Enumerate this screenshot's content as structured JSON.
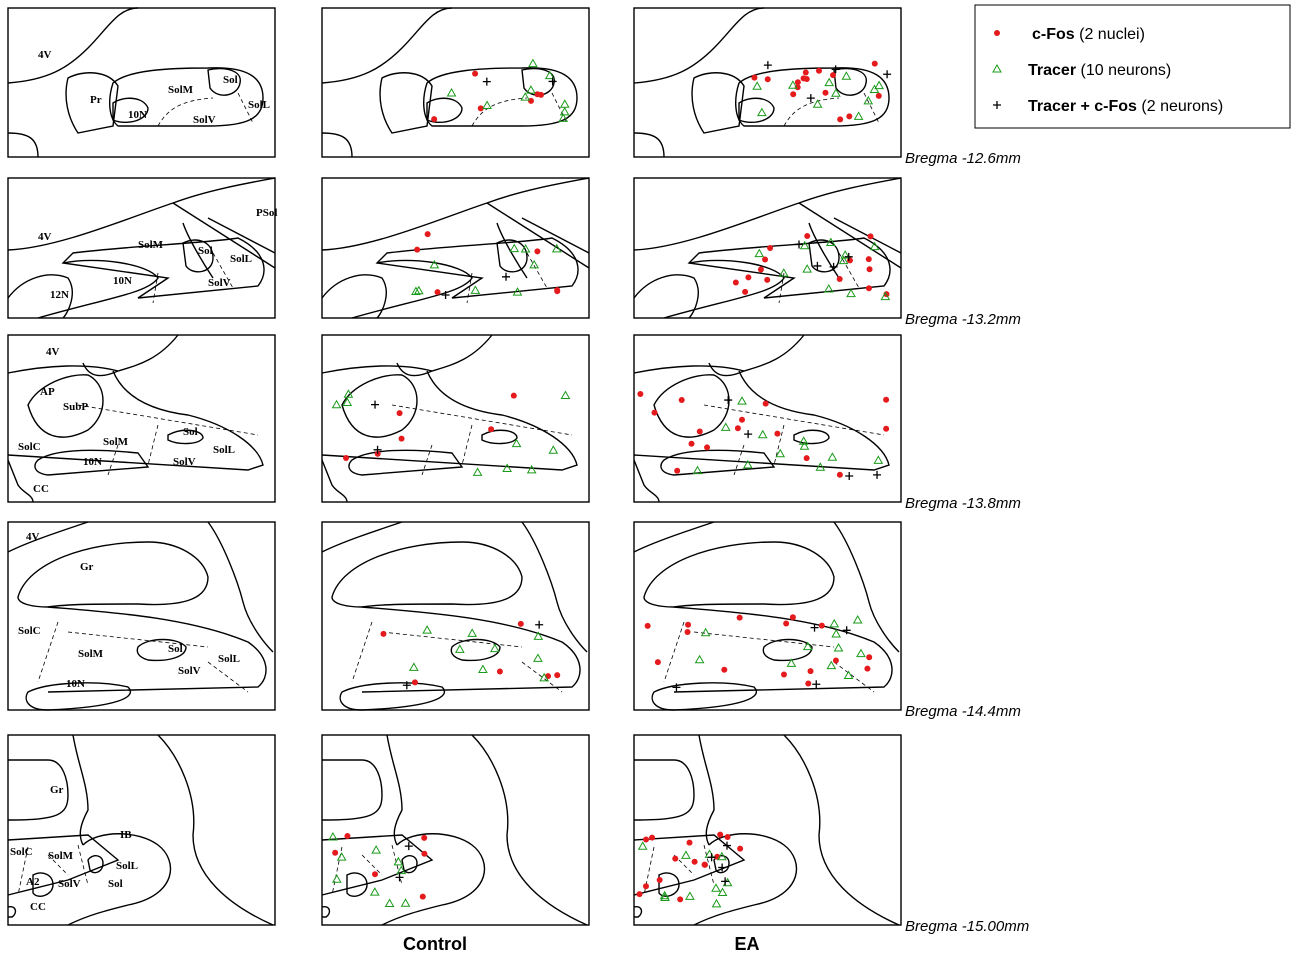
{
  "legend": [
    {
      "name": "c-Fos",
      "note": "(2 nuclei)"
    },
    {
      "name": "Tracer",
      "note": "(10 neurons)"
    },
    {
      "name": "Tracer + c-Fos",
      "note": "(2 neurons)"
    }
  ],
  "sections": [
    {
      "bregma": "Bregma -12.6mm",
      "labels": [
        "4V",
        "Pr",
        "10N",
        "SolM",
        "Sol",
        "SolL",
        "SolV"
      ]
    },
    {
      "bregma": "Bregma -13.2mm",
      "labels": [
        "PSol",
        "4V",
        "SolM",
        "Sol",
        "SolL",
        "10N",
        "SolV",
        "12N"
      ]
    },
    {
      "bregma": "Bregma -13.8mm",
      "labels": [
        "4V",
        "AP",
        "SubP",
        "Sol",
        "SolC",
        "SolM",
        "SolL",
        "10N",
        "SolV",
        "CC"
      ]
    },
    {
      "bregma": "Bregma -14.4mm",
      "labels": [
        "4V",
        "Gr",
        "SolC",
        "SolM",
        "Sol",
        "SolL",
        "SolV",
        "10N"
      ]
    },
    {
      "bregma": "Bregma -15.00mm",
      "labels": [
        "Gr",
        "IB",
        "SolC",
        "SolM",
        "SolL",
        "A2",
        "SolV",
        "Sol",
        "CC"
      ]
    }
  ],
  "columns": [
    "Control",
    "EA"
  ]
}
